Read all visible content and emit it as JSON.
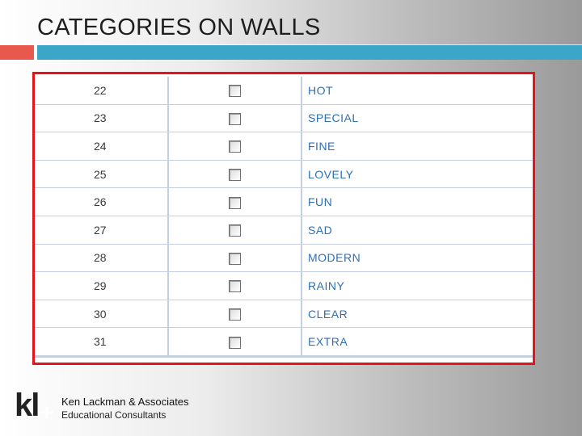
{
  "slide": {
    "title": "CATEGORIES ON WALLS"
  },
  "table": {
    "rows": [
      {
        "number": "22",
        "checked": false,
        "label": "HOT"
      },
      {
        "number": "23",
        "checked": false,
        "label": "SPECIAL"
      },
      {
        "number": "24",
        "checked": false,
        "label": "FINE"
      },
      {
        "number": "25",
        "checked": false,
        "label": "LOVELY"
      },
      {
        "number": "26",
        "checked": false,
        "label": "FUN"
      },
      {
        "number": "27",
        "checked": false,
        "label": "SAD"
      },
      {
        "number": "28",
        "checked": false,
        "label": "MODERN"
      },
      {
        "number": "29",
        "checked": false,
        "label": "RAINY"
      },
      {
        "number": "30",
        "checked": false,
        "label": "CLEAR"
      },
      {
        "number": "31",
        "checked": false,
        "label": "EXTRA"
      }
    ]
  },
  "footer": {
    "logo_text": "kl",
    "logo_plus": "+",
    "company": "Ken Lackman & Associates",
    "tagline": "Educational Consultants"
  },
  "colors": {
    "accent_red": "#e8584d",
    "accent_teal": "#3ba6c8",
    "table_border": "#e3151a",
    "label_text": "#2f6fb3"
  }
}
